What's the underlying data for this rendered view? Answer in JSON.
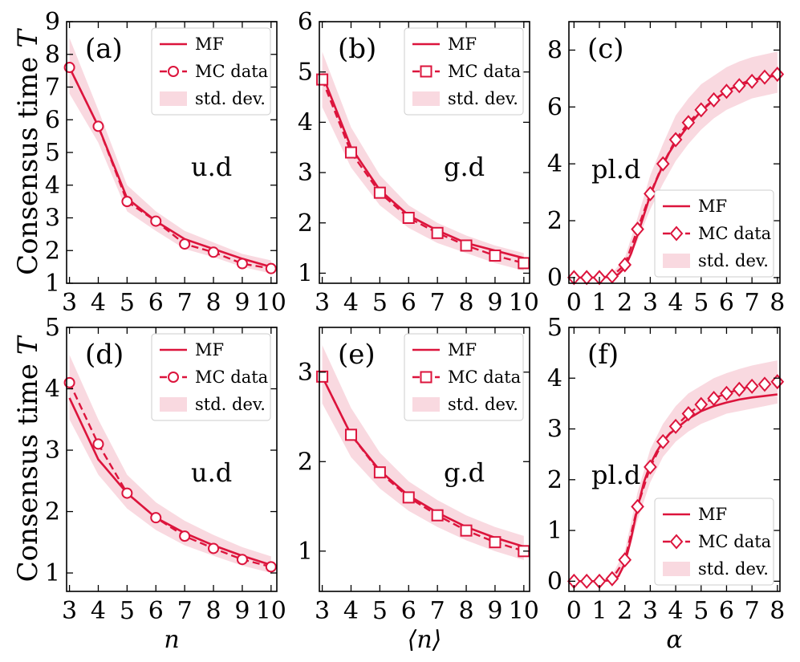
{
  "colors": {
    "line": "#dc143c",
    "band": "#f7c9d3"
  },
  "chart_data": [
    {
      "panel": "(a)",
      "annotation": "u.d",
      "type": "line",
      "ylabel": "Consensus time T",
      "xlabel": "",
      "xlim": [
        2.9,
        10.2
      ],
      "ylim": [
        1,
        9
      ],
      "xticks": [
        3,
        4,
        5,
        6,
        7,
        8,
        9,
        10
      ],
      "yticks": [
        1,
        2,
        3,
        4,
        5,
        6,
        7,
        8,
        9
      ],
      "marker": "circle",
      "legend": "top-right",
      "mf": {
        "name": "MF",
        "x": [
          3,
          4,
          5,
          6,
          7,
          8,
          9,
          10
        ],
        "y": [
          7.6,
          5.8,
          3.6,
          2.9,
          2.35,
          2.05,
          1.75,
          1.5
        ]
      },
      "mc": {
        "name": "MC data",
        "x": [
          3,
          4,
          5,
          6,
          7,
          8,
          9,
          10
        ],
        "y": [
          7.6,
          5.8,
          3.5,
          2.9,
          2.2,
          1.95,
          1.6,
          1.45
        ]
      },
      "std": {
        "name": "std. dev.",
        "lower": [
          6.8,
          5.3,
          3.2,
          2.6,
          2.05,
          1.8,
          1.5,
          1.3
        ],
        "upper": [
          8.5,
          6.3,
          4.0,
          3.2,
          2.6,
          2.25,
          1.9,
          1.7
        ]
      }
    },
    {
      "panel": "(b)",
      "annotation": "g.d",
      "type": "line",
      "ylabel": "",
      "xlabel": "",
      "xlim": [
        2.9,
        10.2
      ],
      "ylim": [
        0.8,
        6
      ],
      "xticks": [
        3,
        4,
        5,
        6,
        7,
        8,
        9,
        10
      ],
      "yticks": [
        1,
        2,
        3,
        4,
        5,
        6
      ],
      "marker": "square",
      "legend": "top-right",
      "mf": {
        "name": "MF",
        "x": [
          3,
          4,
          5,
          6,
          7,
          8,
          9,
          10
        ],
        "y": [
          4.95,
          3.5,
          2.65,
          2.15,
          1.85,
          1.6,
          1.45,
          1.3
        ]
      },
      "mc": {
        "name": "MC data",
        "x": [
          3,
          4,
          5,
          6,
          7,
          8,
          9,
          10
        ],
        "y": [
          4.85,
          3.4,
          2.6,
          2.1,
          1.8,
          1.55,
          1.35,
          1.2
        ]
      },
      "std": {
        "name": "std. dev.",
        "lower": [
          4.3,
          3.1,
          2.35,
          1.9,
          1.6,
          1.4,
          1.2,
          1.05
        ],
        "upper": [
          5.4,
          3.9,
          2.95,
          2.35,
          2.0,
          1.75,
          1.55,
          1.4
        ]
      }
    },
    {
      "panel": "(c)",
      "annotation": "pl.d",
      "type": "line",
      "ylabel": "",
      "xlabel": "",
      "xlim": [
        -0.2,
        8.1
      ],
      "ylim": [
        -0.2,
        9
      ],
      "xticks": [
        0,
        1,
        2,
        3,
        4,
        5,
        6,
        7,
        8
      ],
      "yticks": [
        0,
        2,
        4,
        6,
        8
      ],
      "marker": "diamond",
      "legend": "bottom-right",
      "mf": {
        "name": "MF",
        "x": [
          0,
          0.5,
          1,
          1.5,
          1.75,
          2,
          2.25,
          2.5,
          2.75,
          3,
          3.25,
          3.5,
          3.75,
          4,
          4.5,
          5,
          5.5,
          6,
          6.5,
          7,
          7.5,
          8
        ],
        "y": [
          0,
          0,
          0,
          0.03,
          0.12,
          0.35,
          0.85,
          1.5,
          2.2,
          2.9,
          3.45,
          3.95,
          4.4,
          4.75,
          5.35,
          5.85,
          6.25,
          6.55,
          6.8,
          6.95,
          7.05,
          7.1
        ]
      },
      "mc": {
        "name": "MC data",
        "x": [
          0,
          0.5,
          1,
          1.5,
          2,
          2.5,
          3,
          3.5,
          4,
          4.5,
          5,
          5.5,
          6,
          6.5,
          7,
          7.5,
          8
        ],
        "y": [
          0,
          0,
          0,
          0.05,
          0.45,
          1.7,
          2.95,
          4.0,
          4.85,
          5.45,
          5.9,
          6.25,
          6.55,
          6.75,
          6.9,
          7.05,
          7.15
        ]
      },
      "std": {
        "name": "std. dev.",
        "x": [
          0,
          0.5,
          1,
          1.5,
          2,
          2.5,
          3,
          3.5,
          4,
          4.5,
          5,
          5.5,
          6,
          6.5,
          7,
          7.5,
          8
        ],
        "lower": [
          0,
          0,
          0,
          0,
          0.3,
          1.3,
          2.4,
          3.3,
          4.1,
          4.7,
          5.2,
          5.6,
          5.9,
          6.1,
          6.3,
          6.4,
          6.5
        ],
        "upper": [
          0,
          0,
          0,
          0.15,
          0.7,
          2.1,
          3.6,
          4.7,
          5.7,
          6.3,
          6.8,
          7.1,
          7.4,
          7.6,
          7.75,
          7.85,
          7.95
        ]
      }
    },
    {
      "panel": "(d)",
      "annotation": "u.d",
      "type": "line",
      "ylabel": "Consensus time T",
      "xlabel": "n",
      "xlim": [
        2.9,
        10.2
      ],
      "ylim": [
        0.7,
        5
      ],
      "xticks": [
        3,
        4,
        5,
        6,
        7,
        8,
        9,
        10
      ],
      "yticks": [
        1,
        2,
        3,
        4,
        5
      ],
      "marker": "circle",
      "legend": "top-right",
      "mf": {
        "name": "MF",
        "x": [
          3,
          4,
          5,
          6,
          7,
          8,
          9,
          10
        ],
        "y": [
          3.85,
          2.85,
          2.3,
          1.9,
          1.65,
          1.45,
          1.28,
          1.13
        ]
      },
      "mc": {
        "name": "MC data",
        "x": [
          3,
          4,
          5,
          6,
          7,
          8,
          9,
          10
        ],
        "y": [
          4.1,
          3.1,
          2.3,
          1.9,
          1.6,
          1.4,
          1.22,
          1.1
        ]
      },
      "std": {
        "name": "std. dev.",
        "lower": [
          3.5,
          2.6,
          2.05,
          1.7,
          1.45,
          1.28,
          1.12,
          1.0
        ],
        "upper": [
          4.55,
          3.5,
          2.6,
          2.15,
          1.85,
          1.62,
          1.42,
          1.27
        ]
      }
    },
    {
      "panel": "(e)",
      "annotation": "g.d",
      "type": "line",
      "ylabel": "",
      "xlabel": "⟨n⟩",
      "xlim": [
        2.9,
        10.2
      ],
      "ylim": [
        0.55,
        3.5
      ],
      "xticks": [
        3,
        4,
        5,
        6,
        7,
        8,
        9,
        10
      ],
      "yticks": [
        1,
        2,
        3
      ],
      "marker": "square",
      "legend": "top-right",
      "mf": {
        "name": "MF",
        "x": [
          3,
          4,
          5,
          6,
          7,
          8,
          9,
          10
        ],
        "y": [
          2.95,
          2.3,
          1.9,
          1.62,
          1.43,
          1.27,
          1.15,
          1.05
        ]
      },
      "mc": {
        "name": "MC data",
        "x": [
          3,
          4,
          5,
          6,
          7,
          8,
          9,
          10
        ],
        "y": [
          2.95,
          2.3,
          1.88,
          1.6,
          1.4,
          1.23,
          1.1,
          1.0
        ]
      },
      "std": {
        "name": "std. dev.",
        "lower": [
          2.65,
          2.05,
          1.7,
          1.45,
          1.27,
          1.12,
          1.0,
          0.9
        ],
        "upper": [
          3.3,
          2.6,
          2.1,
          1.78,
          1.57,
          1.4,
          1.27,
          1.17
        ]
      }
    },
    {
      "panel": "(f)",
      "annotation": "pl.d",
      "type": "line",
      "ylabel": "",
      "xlabel": "α",
      "xlim": [
        -0.2,
        8.1
      ],
      "ylim": [
        -0.2,
        5
      ],
      "xticks": [
        0,
        1,
        2,
        3,
        4,
        5,
        6,
        7,
        8
      ],
      "yticks": [
        0,
        1,
        2,
        3,
        4,
        5
      ],
      "marker": "diamond",
      "legend": "bottom-right",
      "mf": {
        "name": "MF",
        "x": [
          0,
          0.5,
          1,
          1.5,
          1.75,
          2,
          2.25,
          2.5,
          2.75,
          3,
          3.25,
          3.5,
          3.75,
          4,
          4.5,
          5,
          5.5,
          6,
          6.5,
          7,
          7.5,
          8
        ],
        "y": [
          0,
          0,
          0,
          0.02,
          0.1,
          0.35,
          0.85,
          1.45,
          1.95,
          2.3,
          2.55,
          2.75,
          2.9,
          3.0,
          3.2,
          3.35,
          3.45,
          3.52,
          3.58,
          3.62,
          3.65,
          3.68
        ]
      },
      "mc": {
        "name": "MC data",
        "x": [
          0,
          0.5,
          1,
          1.5,
          2,
          2.5,
          3,
          3.5,
          4,
          4.5,
          5,
          5.5,
          6,
          6.5,
          7,
          7.5,
          8
        ],
        "y": [
          0,
          0,
          0,
          0.05,
          0.42,
          1.47,
          2.25,
          2.75,
          3.05,
          3.3,
          3.48,
          3.6,
          3.7,
          3.78,
          3.84,
          3.88,
          3.93
        ]
      },
      "std": {
        "name": "std. dev.",
        "x": [
          0,
          0.5,
          1,
          1.5,
          2,
          2.5,
          3,
          3.5,
          4,
          4.5,
          5,
          5.5,
          6,
          6.5,
          7,
          7.5,
          8
        ],
        "lower": [
          0,
          0,
          0,
          0,
          0.3,
          1.2,
          1.95,
          2.45,
          2.75,
          2.95,
          3.1,
          3.2,
          3.3,
          3.35,
          3.4,
          3.45,
          3.5
        ],
        "upper": [
          0,
          0,
          0,
          0.12,
          0.6,
          1.75,
          2.6,
          3.1,
          3.45,
          3.7,
          3.85,
          4.0,
          4.1,
          4.18,
          4.25,
          4.3,
          4.35
        ]
      }
    }
  ]
}
